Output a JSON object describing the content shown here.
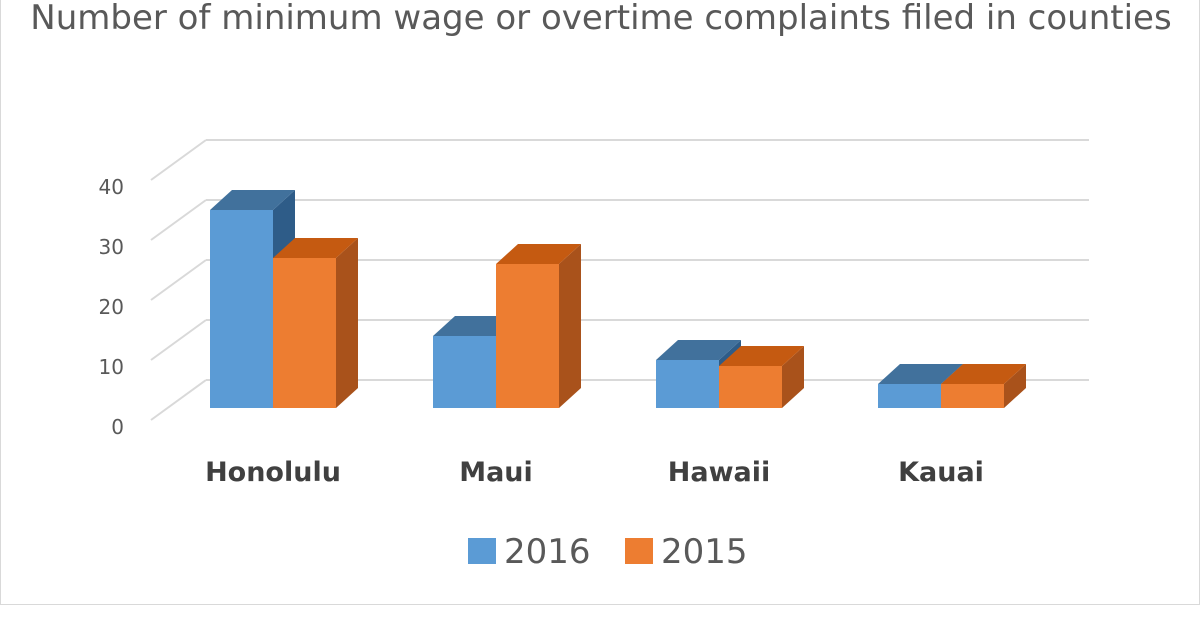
{
  "chart_data": {
    "type": "bar",
    "title": "Number of minimum wage or overtime complaints filed in counties",
    "categories": [
      "Honolulu",
      "Maui",
      "Hawaii",
      "Kauai"
    ],
    "series": [
      {
        "name": "2016",
        "values": [
          33,
          12,
          8,
          4
        ],
        "color": "#5b9bd5",
        "top_color": "#41719c",
        "side_color": "#2e5c88"
      },
      {
        "name": "2015",
        "values": [
          25,
          24,
          7,
          4
        ],
        "color": "#ed7d31",
        "top_color": "#c55a11",
        "side_color": "#a9521b"
      }
    ],
    "yticks": [
      "0",
      "10",
      "20",
      "30",
      "40"
    ],
    "ylim": [
      0,
      40
    ],
    "grid": true,
    "legend_position": "bottom"
  }
}
